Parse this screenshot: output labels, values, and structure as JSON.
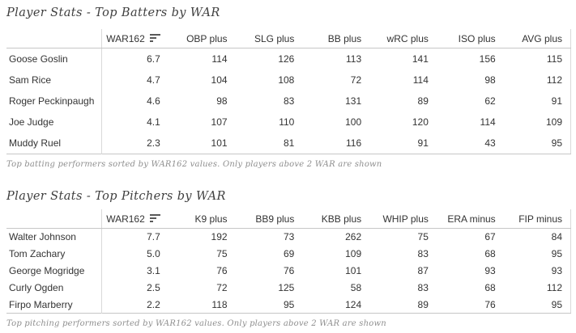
{
  "colors": {
    "background": "#ffffff",
    "title_text": "#3f3f3f",
    "header_text": "#333333",
    "cell_text": "#333333",
    "caption_text": "#8f8f8f",
    "rule_horizontal": "#c6c6c6",
    "rule_vertical": "#d9d9d9",
    "sort_icon": "#595959"
  },
  "chart_data": [
    {
      "type": "table",
      "title": "Player Stats - Top Batters by WAR",
      "sorted_by": "WAR162",
      "sort_direction": "descending",
      "row_header": "",
      "columns": [
        {
          "label": "WAR162",
          "sorted": true
        },
        {
          "label": "OBP plus",
          "sorted": false
        },
        {
          "label": "SLG plus",
          "sorted": false
        },
        {
          "label": "BB plus",
          "sorted": false
        },
        {
          "label": "wRC plus",
          "sorted": false
        },
        {
          "label": "ISO plus",
          "sorted": false
        },
        {
          "label": "AVG plus",
          "sorted": false
        }
      ],
      "rows": [
        {
          "name": "Goose Goslin",
          "values": [
            "6.7",
            "114",
            "126",
            "113",
            "141",
            "156",
            "115"
          ]
        },
        {
          "name": "Sam Rice",
          "values": [
            "4.7",
            "104",
            "108",
            "72",
            "114",
            "98",
            "112"
          ]
        },
        {
          "name": "Roger Peckinpaugh",
          "values": [
            "4.6",
            "98",
            "83",
            "131",
            "89",
            "62",
            "91"
          ]
        },
        {
          "name": "Joe Judge",
          "values": [
            "4.1",
            "107",
            "110",
            "100",
            "120",
            "114",
            "109"
          ]
        },
        {
          "name": "Muddy Ruel",
          "values": [
            "2.3",
            "101",
            "81",
            "116",
            "91",
            "43",
            "95"
          ]
        }
      ],
      "caption": "Top batting performers sorted by WAR162 values. Only players above 2 WAR are shown"
    },
    {
      "type": "table",
      "title": "Player Stats - Top Pitchers by WAR",
      "sorted_by": "WAR162",
      "sort_direction": "descending",
      "row_header": "",
      "columns": [
        {
          "label": "WAR162",
          "sorted": true
        },
        {
          "label": "K9 plus",
          "sorted": false
        },
        {
          "label": "BB9 plus",
          "sorted": false
        },
        {
          "label": "KBB plus",
          "sorted": false
        },
        {
          "label": "WHIP plus",
          "sorted": false
        },
        {
          "label": "ERA minus",
          "sorted": false
        },
        {
          "label": "FIP minus",
          "sorted": false
        }
      ],
      "rows": [
        {
          "name": "Walter Johnson",
          "values": [
            "7.7",
            "192",
            "73",
            "262",
            "75",
            "67",
            "84"
          ]
        },
        {
          "name": "Tom Zachary",
          "values": [
            "5.0",
            "75",
            "69",
            "109",
            "83",
            "68",
            "95"
          ]
        },
        {
          "name": "George Mogridge",
          "values": [
            "3.1",
            "76",
            "76",
            "101",
            "87",
            "93",
            "93"
          ]
        },
        {
          "name": "Curly Ogden",
          "values": [
            "2.5",
            "72",
            "125",
            "58",
            "83",
            "68",
            "112"
          ]
        },
        {
          "name": "Firpo Marberry",
          "values": [
            "2.2",
            "118",
            "95",
            "124",
            "89",
            "76",
            "95"
          ]
        }
      ],
      "caption": "Top pitching performers sorted by WAR162 values. Only players above 2 WAR are shown"
    }
  ]
}
